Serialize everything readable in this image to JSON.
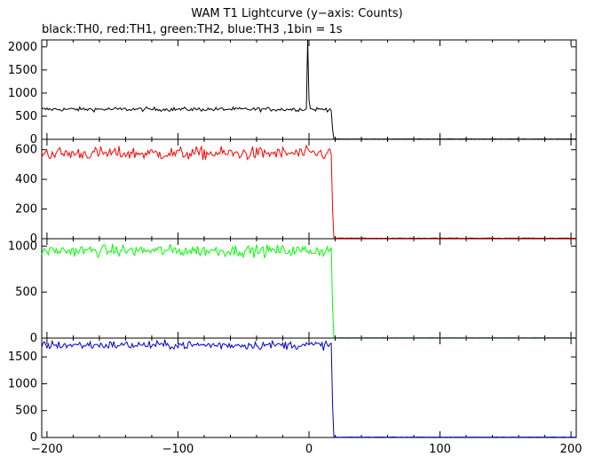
{
  "title": "WAM T1 Lightcurve (y−axis: Counts)",
  "subtitle": "black:TH0, red:TH1, green:TH2, blue:TH3 ,1bin = 1s",
  "chart_data": {
    "type": "line",
    "xlim": [
      -204,
      204
    ],
    "x_ticks": [
      -200,
      -100,
      0,
      100,
      200
    ],
    "x_tick_labels": [
      "−200",
      "−100",
      "0",
      "100",
      "200"
    ],
    "drop_time": 18,
    "grid": false,
    "panels": [
      {
        "name": "TH0",
        "color": "#000000",
        "ylim": [
          0,
          2150
        ],
        "y_ticks": [
          0,
          500,
          1000,
          1500,
          2000
        ],
        "y_tick_labels": [
          "0",
          "500",
          "1000",
          "1500",
          "2000"
        ],
        "pre_level": 650,
        "noise": 22,
        "post_level": 5,
        "spikes": [
          {
            "x": -1,
            "value": 2150
          },
          {
            "x": 0,
            "value": 850
          }
        ]
      },
      {
        "name": "TH1",
        "color": "#ff0000",
        "ylim": [
          0,
          670
        ],
        "y_ticks": [
          0,
          200,
          400,
          600
        ],
        "y_tick_labels": [
          "0",
          "200",
          "400",
          "600"
        ],
        "pre_level": 575,
        "noise": 22,
        "post_level": 2,
        "spikes": []
      },
      {
        "name": "TH2",
        "color": "#00ff00",
        "ylim": [
          0,
          1080
        ],
        "y_ticks": [
          0,
          500,
          1000
        ],
        "y_tick_labels": [
          "0",
          "500",
          "1000"
        ],
        "pre_level": 950,
        "noise": 32,
        "post_level": 3,
        "spikes": []
      },
      {
        "name": "TH3",
        "color": "#0000cc",
        "ylim": [
          0,
          1850
        ],
        "y_ticks": [
          0,
          500,
          1000,
          1500
        ],
        "y_tick_labels": [
          "0",
          "500",
          "1000",
          "1500"
        ],
        "pre_level": 1720,
        "noise": 40,
        "post_level": 5,
        "spikes": []
      }
    ]
  }
}
